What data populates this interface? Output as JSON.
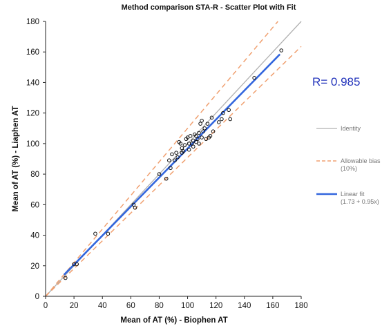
{
  "chart_data": {
    "type": "scatter",
    "title": "Method comparison STA-R - Scatter Plot with Fit",
    "xlabel": "Mean of AT (%) - Biophen AT",
    "ylabel": "Mean of AT (%) - Liaphen AT",
    "xlim": [
      0,
      180
    ],
    "ylim": [
      0,
      180
    ],
    "x_ticks": [
      "0",
      "20",
      "40",
      "60",
      "80",
      "100",
      "120",
      "140",
      "160",
      "180"
    ],
    "y_ticks": [
      "0",
      "20",
      "40",
      "60",
      "80",
      "100",
      "120",
      "140",
      "160",
      "180"
    ],
    "grid": false,
    "legend_position": "right",
    "annotation": "R= 0.985",
    "legend": [
      {
        "label": "Identity",
        "color": "#b0b0b0",
        "style": "solid"
      },
      {
        "label": "Allowable bias\n(10%)",
        "color": "#f0a070",
        "style": "dashed"
      },
      {
        "label": "Linear fit\n(1.73 + 0.95x)",
        "color": "#3366dd",
        "style": "solid"
      }
    ],
    "lines": {
      "identity": {
        "x": [
          0,
          180
        ],
        "y": [
          0,
          180
        ]
      },
      "bias_upper": {
        "x": [
          0,
          163.6
        ],
        "y": [
          0,
          180
        ]
      },
      "bias_lower": {
        "x": [
          0,
          180
        ],
        "y": [
          0,
          163.6
        ]
      },
      "linear_fit": {
        "x": [
          13,
          165
        ],
        "y": [
          14.1,
          158.5
        ],
        "intercept": 1.73,
        "slope": 0.95
      }
    },
    "points": {
      "x": [
        14,
        20,
        22,
        35,
        44,
        62,
        63,
        80,
        85,
        87,
        88,
        89,
        91,
        92,
        93,
        94,
        95,
        96,
        96,
        97,
        98,
        99,
        100,
        101,
        101,
        102,
        103,
        104,
        104,
        105,
        106,
        106,
        107,
        108,
        108,
        109,
        110,
        110,
        111,
        112,
        113,
        114,
        115,
        116,
        117,
        118,
        122,
        124,
        125,
        129,
        130,
        147,
        166
      ],
      "y": [
        12,
        21,
        21,
        41,
        41,
        60,
        58,
        80,
        77,
        89,
        84,
        93,
        89,
        94,
        91,
        101,
        100,
        97,
        94,
        95,
        99,
        103,
        104,
        100,
        96,
        105,
        100,
        102,
        98,
        106,
        105,
        101,
        103,
        107,
        100,
        113,
        104,
        115,
        108,
        110,
        103,
        113,
        104,
        105,
        117,
        108,
        114,
        116,
        120,
        122,
        116,
        143,
        161
      ]
    }
  }
}
